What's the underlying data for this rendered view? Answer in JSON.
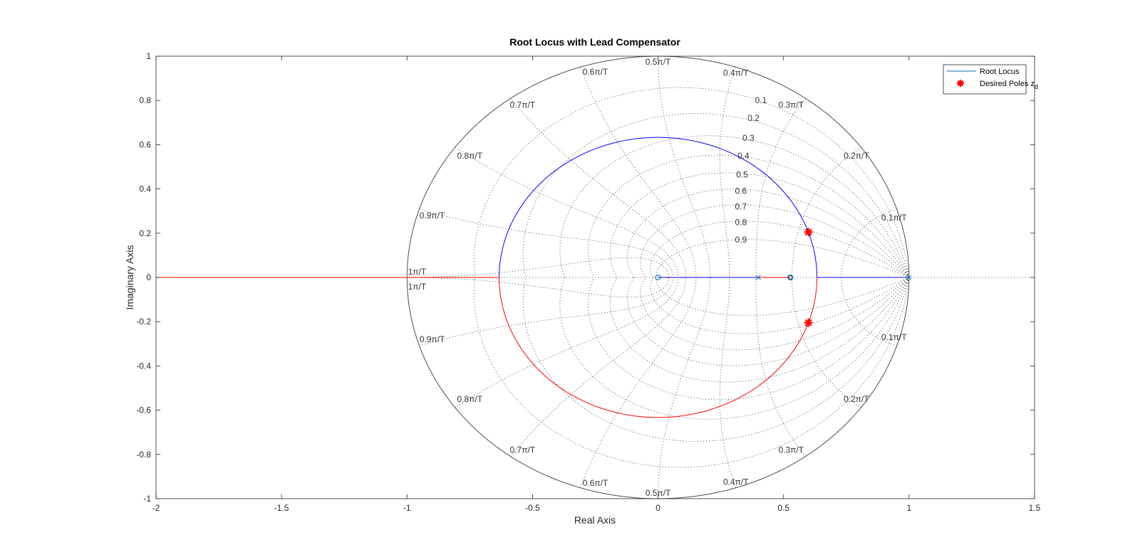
{
  "chart_data": {
    "type": "line",
    "title": "Root Locus with Lead Compensator",
    "xlabel": "Real Axis",
    "ylabel": "Imaginary Axis",
    "xlim": [
      -2,
      1.5
    ],
    "ylim": [
      -1,
      1
    ],
    "xticks": [
      -2,
      -1.5,
      -1,
      -0.5,
      0,
      0.5,
      1,
      1.5
    ],
    "xtick_labels": [
      "-2",
      "-1.5",
      "-1",
      "-0.5",
      "0",
      "0.5",
      "1",
      "1.5"
    ],
    "yticks": [
      -1,
      -0.8,
      -0.6,
      -0.4,
      -0.2,
      0,
      0.2,
      0.4,
      0.6,
      0.8,
      1
    ],
    "ytick_labels": [
      "-1",
      "-0.8",
      "-0.6",
      "-0.4",
      "-0.2",
      "0",
      "0.2",
      "0.4",
      "0.6",
      "0.8",
      "1"
    ],
    "grid": "zgrid",
    "zeta_labels": [
      "0.1",
      "0.2",
      "0.3",
      "0.4",
      "0.5",
      "0.6",
      "0.7",
      "0.8",
      "0.9"
    ],
    "wn_labels": [
      "0.1π/T",
      "0.2π/T",
      "0.3π/T",
      "0.4π/T",
      "0.5π/T",
      "0.6π/T",
      "0.7π/T",
      "0.8π/T",
      "0.9π/T",
      "1π/T"
    ],
    "legend": {
      "placement": "top-right",
      "entries": [
        {
          "label": "Root Locus",
          "marker": "line",
          "color": "#0072BD"
        },
        {
          "label": "Desired Poles z",
          "subscript": "d",
          "marker": "asterisk",
          "color": "#FF0000"
        }
      ]
    },
    "series": [
      {
        "name": "Root Locus",
        "color": "#0000FF",
        "segments": [
          {
            "kind": "arc",
            "center": [
              0,
              0
            ],
            "radius": 0.633,
            "from_deg": 0,
            "to_deg": 180
          },
          {
            "kind": "line",
            "x": [
              0,
              0.4
            ],
            "y": [
              0,
              0
            ]
          },
          {
            "kind": "line",
            "x": [
              1,
              0.633
            ],
            "y": [
              0,
              0
            ]
          }
        ]
      },
      {
        "color": "#FF0000",
        "segments": [
          {
            "kind": "arc",
            "center": [
              0,
              0
            ],
            "radius": 0.633,
            "from_deg": 180,
            "to_deg": 360
          },
          {
            "kind": "line",
            "x": [
              0.4,
              0.527
            ],
            "y": [
              0,
              0
            ]
          },
          {
            "kind": "line",
            "x": [
              -0.633,
              -2
            ],
            "y": [
              0,
              0
            ]
          }
        ]
      }
    ],
    "poles": [
      {
        "x": 0.4,
        "y": 0
      },
      {
        "x": 1.0,
        "y": 0
      }
    ],
    "zeros": [
      {
        "x": 0,
        "y": 0
      },
      {
        "x": 0.527,
        "y": 0
      }
    ],
    "desired_poles": [
      {
        "x": 0.599,
        "y": 0.205
      },
      {
        "x": 0.599,
        "y": -0.205
      }
    ],
    "colors": {
      "locus_blue": "#0000FF",
      "locus_red": "#FF0000",
      "marker_blue": "#0072BD",
      "grid": "#262626",
      "unit_circle": "#4D4D4D",
      "desired": "#FF0000"
    }
  }
}
